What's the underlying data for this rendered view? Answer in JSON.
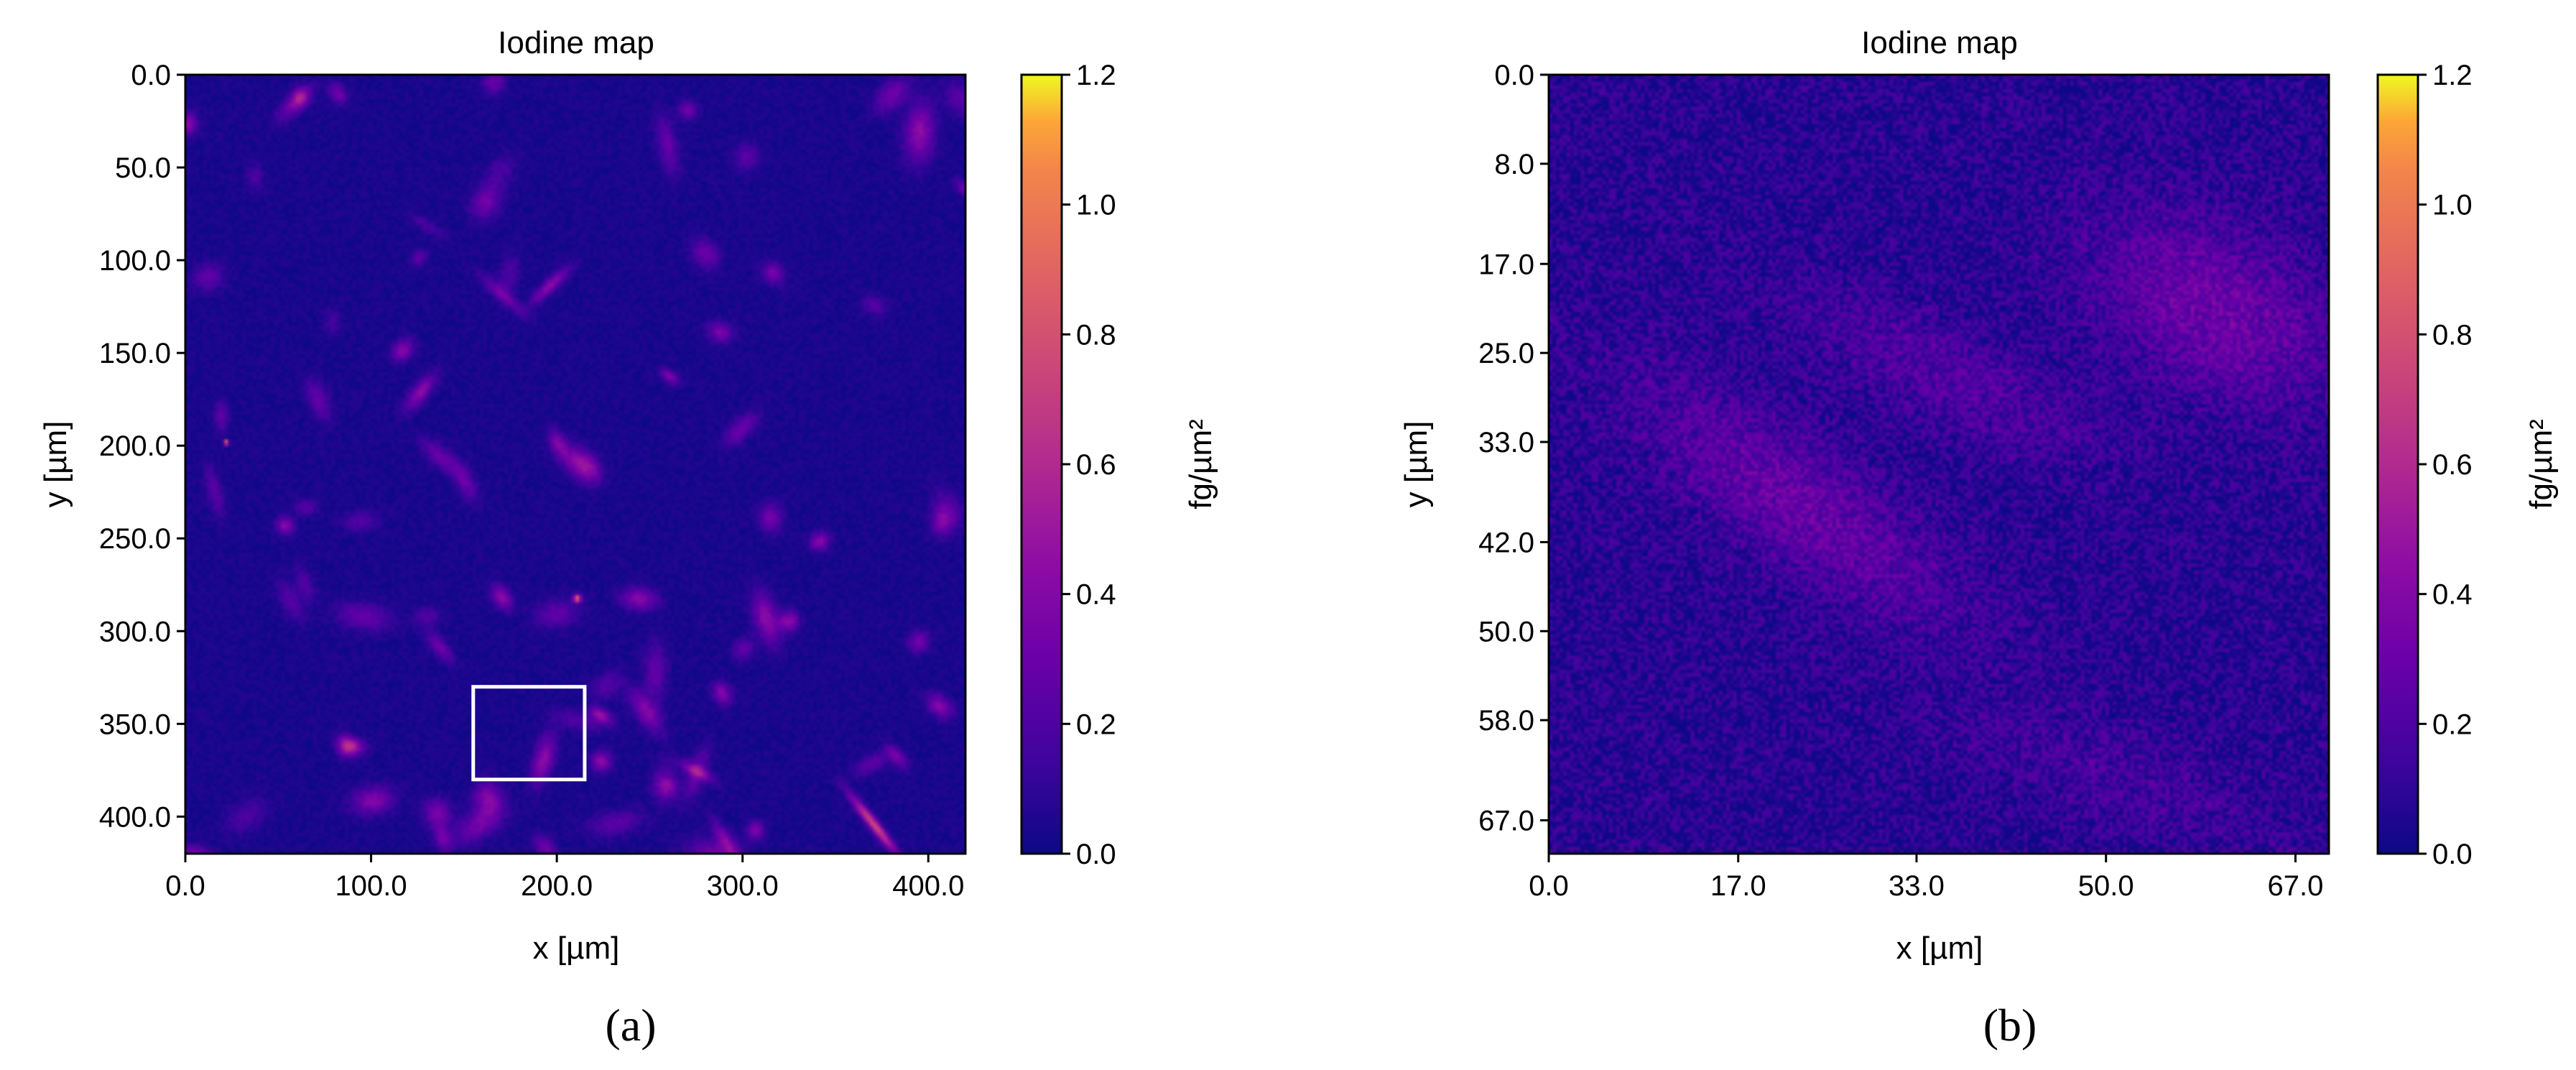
{
  "chart_data": [
    {
      "type": "heatmap",
      "panel_label": "(a)",
      "title": "Iodine map",
      "xlabel": "x [µm]",
      "ylabel": "y [µm]",
      "xlim": [
        0,
        420
      ],
      "ylim": [
        420,
        0
      ],
      "x_ticks": [
        "0.0",
        "100.0",
        "200.0",
        "300.0",
        "400.0"
      ],
      "x_tick_values": [
        0,
        100,
        200,
        300,
        400
      ],
      "y_ticks": [
        "0.0",
        "50.0",
        "100.0",
        "150.0",
        "200.0",
        "250.0",
        "300.0",
        "350.0",
        "400.0"
      ],
      "y_tick_values": [
        0,
        50,
        100,
        150,
        200,
        250,
        300,
        350,
        400
      ],
      "colormap": "plasma",
      "colorbar": {
        "label": "fg/µm²",
        "range": [
          0.0,
          1.2
        ],
        "ticks": [
          "0.0",
          "0.2",
          "0.4",
          "0.6",
          "0.8",
          "1.0",
          "1.2"
        ],
        "tick_values": [
          0.0,
          0.2,
          0.4,
          0.6,
          0.8,
          1.0,
          1.2
        ]
      },
      "annotation": {
        "type": "rectangle",
        "color": "#ffffff",
        "x_range": [
          155,
          215
        ],
        "y_range": [
          330,
          380
        ]
      }
    },
    {
      "type": "heatmap",
      "panel_label": "(b)",
      "title": "Iodine map",
      "xlabel": "x [µm]",
      "ylabel": "y [µm]",
      "xlim": [
        0,
        70
      ],
      "ylim": [
        70,
        0
      ],
      "x_ticks": [
        "0.0",
        "17.0",
        "33.0",
        "50.0",
        "67.0"
      ],
      "x_tick_values": [
        0,
        17,
        33,
        50,
        67
      ],
      "y_ticks": [
        "0.0",
        "8.0",
        "17.0",
        "25.0",
        "33.0",
        "42.0",
        "50.0",
        "58.0",
        "67.0"
      ],
      "y_tick_values": [
        0,
        8,
        17,
        25,
        33,
        42,
        50,
        58,
        67
      ],
      "colormap": "plasma",
      "colorbar": {
        "label": "fg/µm²",
        "range": [
          0.0,
          1.2
        ],
        "ticks": [
          "0.0",
          "0.2",
          "0.4",
          "0.6",
          "0.8",
          "1.0",
          "1.2"
        ],
        "tick_values": [
          0.0,
          0.2,
          0.4,
          0.6,
          0.8,
          1.0,
          1.2
        ]
      }
    }
  ]
}
